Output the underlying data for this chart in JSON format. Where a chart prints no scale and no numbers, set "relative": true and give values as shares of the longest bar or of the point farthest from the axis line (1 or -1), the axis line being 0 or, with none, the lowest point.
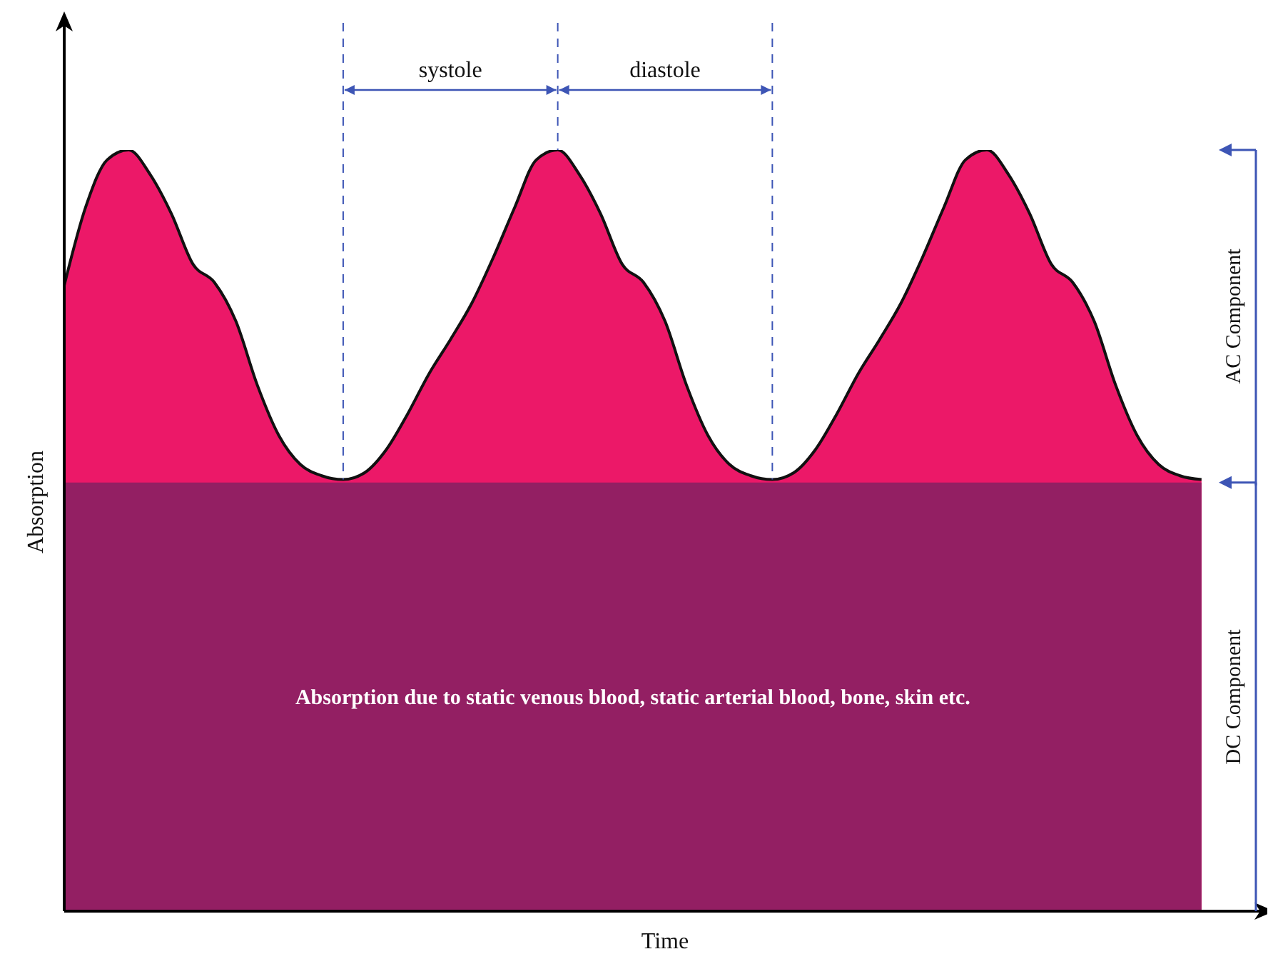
{
  "chart_data": {
    "type": "area",
    "xlabel": "Time",
    "ylabel": "Absorption",
    "relative": true,
    "marker": "none",
    "categories": [
      null,
      null,
      null,
      null,
      null,
      null,
      null,
      null,
      null,
      null,
      null,
      null,
      null,
      null,
      null,
      null,
      null,
      null,
      null,
      null,
      null,
      null,
      null,
      null,
      null,
      null,
      null,
      null,
      null,
      null,
      null,
      null,
      null,
      null,
      null,
      null,
      null,
      null,
      null,
      null,
      null,
      null,
      null,
      null,
      null,
      null,
      null,
      null,
      null,
      null,
      null,
      null,
      null,
      null
    ],
    "series": [
      {
        "color": "#ec1868",
        "values": [
          0.822,
          0.925,
          0.987,
          1.0,
          0.968,
          0.916,
          0.85,
          0.826,
          0.775,
          0.691,
          0.625,
          0.587,
          0.572,
          0.567,
          0.576,
          0.606,
          0.653,
          0.706,
          0.751,
          0.799,
          0.859,
          0.925,
          0.987,
          1.0,
          0.968,
          0.916,
          0.85,
          0.826,
          0.775,
          0.691,
          0.625,
          0.587,
          0.572,
          0.567,
          0.576,
          0.606,
          0.653,
          0.706,
          0.751,
          0.799,
          0.859,
          0.925,
          0.987,
          1.0,
          0.968,
          0.916,
          0.85,
          0.826,
          0.775,
          0.691,
          0.625,
          0.587,
          0.572,
          0.567
        ]
      },
      {
        "color": "#931f63",
        "values": [
          0.563,
          0.563,
          0.563,
          0.563,
          0.563,
          0.563,
          0.563,
          0.563,
          0.563,
          0.563,
          0.563,
          0.563,
          0.563,
          0.563,
          0.563,
          0.563,
          0.563,
          0.563,
          0.563,
          0.563,
          0.563,
          0.563,
          0.563,
          0.563,
          0.563,
          0.563,
          0.563,
          0.563,
          0.563,
          0.563,
          0.563,
          0.563,
          0.563,
          0.563,
          0.563,
          0.563,
          0.563,
          0.563,
          0.563,
          0.563,
          0.563,
          0.563,
          0.563,
          0.563,
          0.563,
          0.563,
          0.563,
          0.563,
          0.563,
          0.563,
          0.563,
          0.563,
          0.563,
          0.563
        ]
      }
    ],
    "annotations": [
      "systole",
      "diastole",
      "AC Component",
      "DC Component",
      "Absorption due to static venous blood, static arterial blood, bone, skin etc."
    ]
  }
}
